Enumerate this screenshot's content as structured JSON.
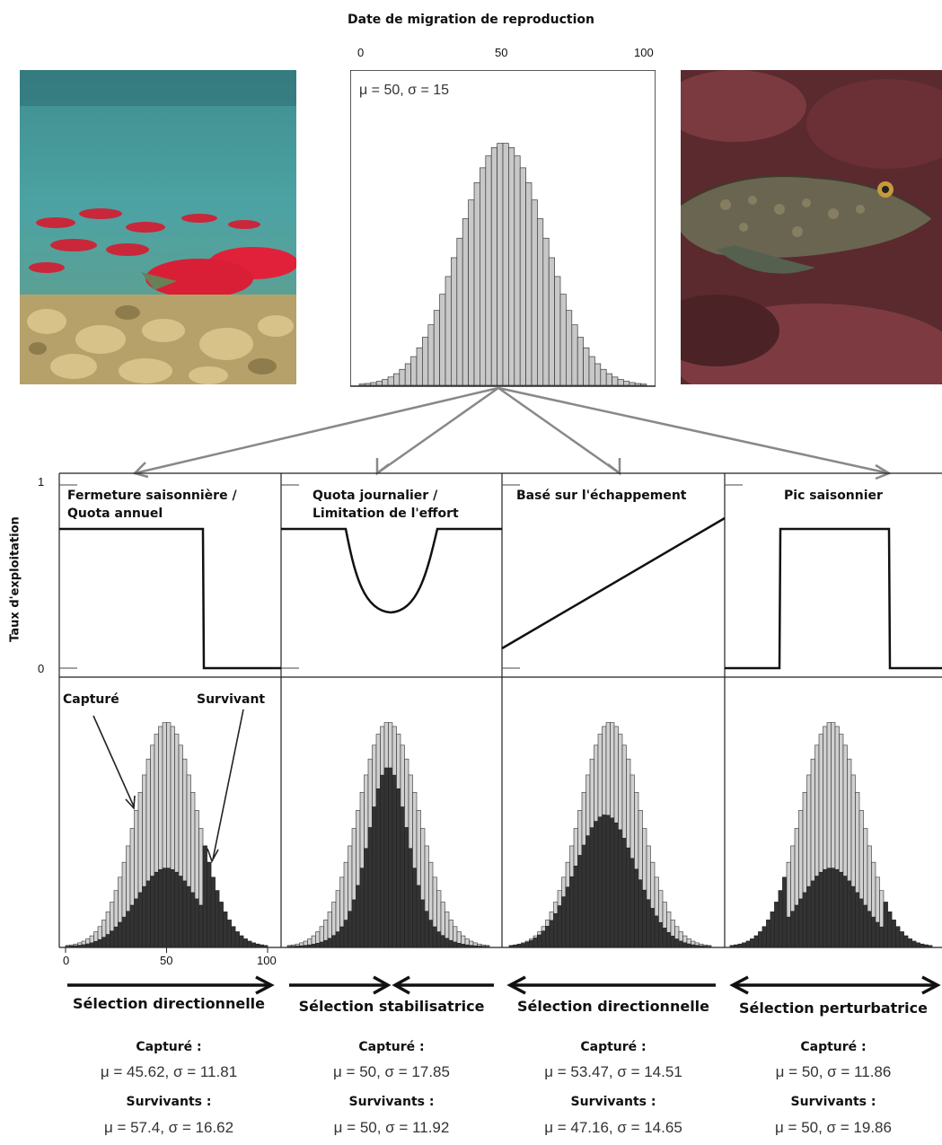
{
  "title": "Date de migration de reproduction",
  "y_axis_label": "Taux d'exploitation",
  "top_hist": {
    "ticks": [
      "0",
      "50",
      "100"
    ],
    "label": "μ = 50, σ = 15",
    "mu": 50,
    "sigma": 15
  },
  "ytick_1": "1",
  "ytick_0": "0",
  "bottom_ticks": [
    "0",
    "50",
    "100"
  ],
  "annotations": {
    "captured": "Capturé",
    "survivor": "Survivant"
  },
  "photos": {
    "left": "sockeye-salmon-school-photo",
    "right": "lingcod-fish-photo"
  },
  "panels": [
    {
      "policy": [
        "Fermeture saisonnière /",
        "Quota annuel"
      ],
      "selection": "Sélection directionnelle",
      "arrow": "right",
      "captured_header": "Capturé :",
      "captured_stats": "μ = 45.62, σ = 11.81",
      "survivors_header": "Survivants :",
      "survivors_stats": "μ = 57.4, σ = 16.62"
    },
    {
      "policy": [
        "Quota journalier /",
        "Limitation de l'effort"
      ],
      "selection": "Sélection stabilisatrice",
      "arrow": "inward",
      "captured_header": "Capturé :",
      "captured_stats": "μ = 50, σ = 17.85",
      "survivors_header": "Survivants :",
      "survivors_stats": "μ = 50, σ = 11.92"
    },
    {
      "policy": [
        "Basé sur l'échappement"
      ],
      "selection": "Sélection directionnelle",
      "arrow": "left",
      "captured_header": "Capturé :",
      "captured_stats": "μ = 53.47, σ = 14.51",
      "survivors_header": "Survivants :",
      "survivors_stats": "μ = 47.16, σ = 14.65"
    },
    {
      "policy": [
        "Pic saisonnier"
      ],
      "selection": "Sélection perturbatrice",
      "arrow": "both",
      "captured_header": "Capturé :",
      "captured_stats": "μ = 50, σ = 11.86",
      "survivors_header": "Survivants :",
      "survivors_stats": "μ = 50, σ = 19.86"
    }
  ]
}
